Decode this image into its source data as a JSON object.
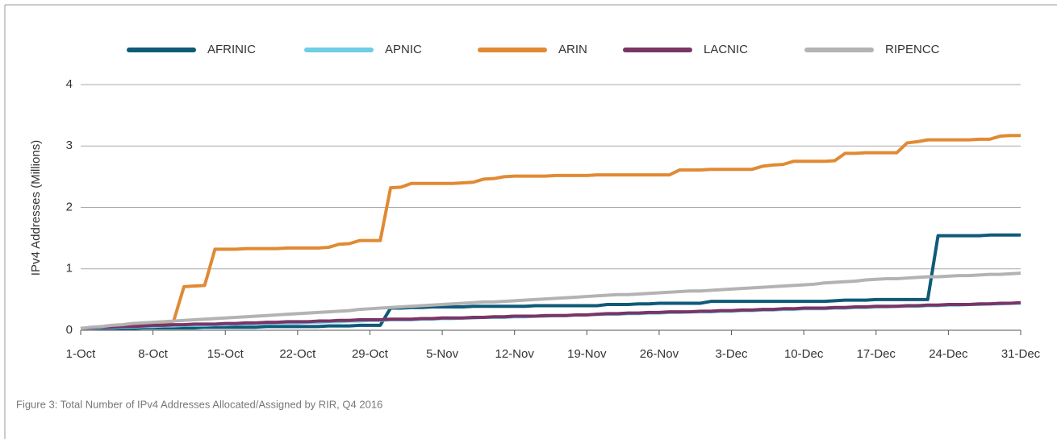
{
  "chart_data": {
    "type": "line",
    "caption": "Figure 3: Total Number of IPv4 Addresses Allocated/Assigned by RIR, Q4 2016",
    "y_label": "IPv4 Addresses (Millions)",
    "categories": [
      "1-Oct",
      null,
      null,
      null,
      null,
      null,
      null,
      "8-Oct",
      null,
      null,
      null,
      null,
      null,
      null,
      "15-Oct",
      null,
      null,
      null,
      null,
      null,
      null,
      "22-Oct",
      null,
      null,
      null,
      null,
      null,
      null,
      "29-Oct",
      null,
      null,
      null,
      null,
      null,
      null,
      "5-Nov",
      null,
      null,
      null,
      null,
      null,
      null,
      "12-Nov",
      null,
      null,
      null,
      null,
      null,
      null,
      "19-Nov",
      null,
      null,
      null,
      null,
      null,
      null,
      "26-Nov",
      null,
      null,
      null,
      null,
      null,
      null,
      "3-Dec",
      null,
      null,
      null,
      null,
      null,
      null,
      "10-Dec",
      null,
      null,
      null,
      null,
      null,
      null,
      "17-Dec",
      null,
      null,
      null,
      null,
      null,
      null,
      "24-Dec",
      null,
      null,
      null,
      null,
      null,
      null,
      "31-Dec"
    ],
    "ylim": [
      0,
      4
    ],
    "yticks": [
      0,
      1,
      2,
      3,
      4
    ],
    "grid": true,
    "legend": "top",
    "series": [
      {
        "name": "AFRINIC",
        "color": "#0f5a78",
        "values": [
          0.03,
          0.03,
          0.03,
          0.03,
          0.03,
          0.03,
          0.04,
          0.04,
          0.04,
          0.04,
          0.04,
          0.04,
          0.05,
          0.05,
          0.05,
          0.05,
          0.05,
          0.05,
          0.06,
          0.06,
          0.06,
          0.06,
          0.06,
          0.06,
          0.07,
          0.07,
          0.07,
          0.08,
          0.08,
          0.08,
          0.36,
          0.36,
          0.37,
          0.37,
          0.38,
          0.38,
          0.38,
          0.38,
          0.39,
          0.39,
          0.39,
          0.39,
          0.39,
          0.39,
          0.4,
          0.4,
          0.4,
          0.4,
          0.4,
          0.4,
          0.4,
          0.42,
          0.42,
          0.42,
          0.43,
          0.43,
          0.44,
          0.44,
          0.44,
          0.44,
          0.44,
          0.47,
          0.47,
          0.47,
          0.47,
          0.47,
          0.47,
          0.47,
          0.47,
          0.47,
          0.47,
          0.47,
          0.47,
          0.48,
          0.49,
          0.49,
          0.49,
          0.5,
          0.5,
          0.5,
          0.5,
          0.5,
          0.5,
          1.54,
          1.54,
          1.54,
          1.54,
          1.54,
          1.55,
          1.55,
          1.55,
          1.55
        ]
      },
      {
        "name": "APNIC",
        "color": "#6fcde6",
        "values": [
          0.03,
          0.03,
          0.04,
          0.04,
          0.05,
          0.05,
          0.06,
          0.06,
          0.07,
          0.07,
          0.08,
          0.08,
          0.08,
          0.09,
          0.09,
          0.1,
          0.1,
          0.11,
          0.11,
          0.12,
          0.12,
          0.12,
          0.13,
          0.13,
          0.14,
          0.14,
          0.15,
          0.15,
          0.16,
          0.16,
          0.17,
          0.17,
          0.17,
          0.18,
          0.18,
          0.19,
          0.19,
          0.2,
          0.2,
          0.21,
          0.21,
          0.21,
          0.22,
          0.22,
          0.23,
          0.23,
          0.24,
          0.24,
          0.25,
          0.25,
          0.26,
          0.26,
          0.26,
          0.27,
          0.27,
          0.28,
          0.28,
          0.29,
          0.29,
          0.3,
          0.3,
          0.3,
          0.31,
          0.31,
          0.32,
          0.32,
          0.33,
          0.33,
          0.34,
          0.34,
          0.35,
          0.35,
          0.35,
          0.36,
          0.36,
          0.37,
          0.37,
          0.38,
          0.38,
          0.39,
          0.39,
          0.39,
          0.4,
          0.4,
          0.41,
          0.41,
          0.42,
          0.42,
          0.43,
          0.43,
          0.44,
          0.44
        ]
      },
      {
        "name": "ARIN",
        "color": "#e08a34",
        "values": [
          0.03,
          0.04,
          0.05,
          0.06,
          0.07,
          0.08,
          0.09,
          0.1,
          0.1,
          0.15,
          0.71,
          0.72,
          0.73,
          1.32,
          1.32,
          1.32,
          1.33,
          1.33,
          1.33,
          1.33,
          1.34,
          1.34,
          1.34,
          1.34,
          1.35,
          1.4,
          1.41,
          1.46,
          1.46,
          1.46,
          2.32,
          2.33,
          2.39,
          2.39,
          2.39,
          2.39,
          2.39,
          2.4,
          2.41,
          2.46,
          2.47,
          2.5,
          2.51,
          2.51,
          2.51,
          2.51,
          2.52,
          2.52,
          2.52,
          2.52,
          2.53,
          2.53,
          2.53,
          2.53,
          2.53,
          2.53,
          2.53,
          2.53,
          2.61,
          2.61,
          2.61,
          2.62,
          2.62,
          2.62,
          2.62,
          2.62,
          2.67,
          2.69,
          2.7,
          2.75,
          2.75,
          2.75,
          2.75,
          2.76,
          2.88,
          2.88,
          2.89,
          2.89,
          2.89,
          2.89,
          3.05,
          3.07,
          3.1,
          3.1,
          3.1,
          3.1,
          3.1,
          3.11,
          3.11,
          3.16,
          3.17,
          3.17
        ]
      },
      {
        "name": "LACNIC",
        "color": "#7a3566",
        "values": [
          0.03,
          0.04,
          0.05,
          0.05,
          0.06,
          0.06,
          0.07,
          0.08,
          0.08,
          0.09,
          0.09,
          0.1,
          0.1,
          0.1,
          0.11,
          0.11,
          0.12,
          0.12,
          0.13,
          0.13,
          0.14,
          0.14,
          0.14,
          0.15,
          0.15,
          0.16,
          0.16,
          0.17,
          0.17,
          0.17,
          0.18,
          0.18,
          0.18,
          0.19,
          0.19,
          0.2,
          0.2,
          0.2,
          0.21,
          0.21,
          0.22,
          0.22,
          0.23,
          0.23,
          0.23,
          0.24,
          0.24,
          0.24,
          0.25,
          0.25,
          0.26,
          0.27,
          0.27,
          0.28,
          0.28,
          0.29,
          0.29,
          0.3,
          0.3,
          0.3,
          0.31,
          0.31,
          0.32,
          0.32,
          0.33,
          0.33,
          0.34,
          0.34,
          0.35,
          0.35,
          0.36,
          0.36,
          0.36,
          0.37,
          0.37,
          0.38,
          0.38,
          0.39,
          0.39,
          0.39,
          0.4,
          0.4,
          0.41,
          0.41,
          0.42,
          0.42,
          0.42,
          0.43,
          0.43,
          0.44,
          0.44,
          0.45
        ]
      },
      {
        "name": "RIPENCC",
        "color": "#b3b3b3",
        "values": [
          0.03,
          0.05,
          0.06,
          0.08,
          0.09,
          0.11,
          0.12,
          0.13,
          0.14,
          0.15,
          0.16,
          0.17,
          0.18,
          0.19,
          0.2,
          0.21,
          0.22,
          0.23,
          0.24,
          0.25,
          0.26,
          0.27,
          0.28,
          0.29,
          0.3,
          0.31,
          0.32,
          0.34,
          0.35,
          0.36,
          0.37,
          0.38,
          0.39,
          0.4,
          0.41,
          0.42,
          0.43,
          0.44,
          0.45,
          0.46,
          0.46,
          0.47,
          0.48,
          0.49,
          0.5,
          0.51,
          0.52,
          0.53,
          0.54,
          0.55,
          0.56,
          0.57,
          0.58,
          0.58,
          0.59,
          0.6,
          0.61,
          0.62,
          0.63,
          0.64,
          0.64,
          0.65,
          0.66,
          0.67,
          0.68,
          0.69,
          0.7,
          0.71,
          0.72,
          0.73,
          0.74,
          0.75,
          0.77,
          0.78,
          0.79,
          0.8,
          0.82,
          0.83,
          0.84,
          0.84,
          0.85,
          0.86,
          0.87,
          0.87,
          0.88,
          0.89,
          0.89,
          0.9,
          0.91,
          0.91,
          0.92,
          0.93
        ]
      }
    ]
  }
}
